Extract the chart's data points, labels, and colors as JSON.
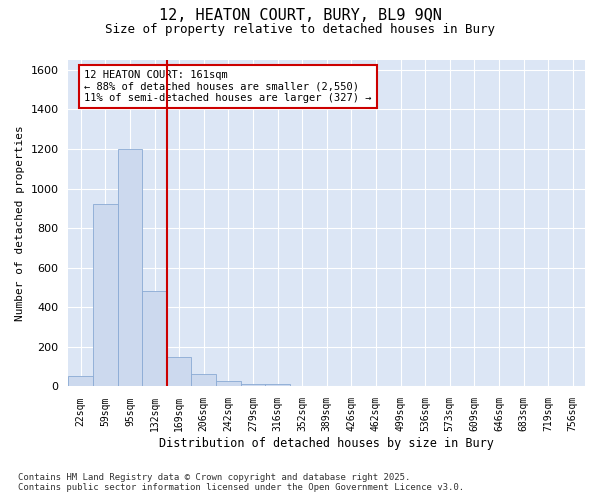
{
  "title1": "12, HEATON COURT, BURY, BL9 9QN",
  "title2": "Size of property relative to detached houses in Bury",
  "xlabel": "Distribution of detached houses by size in Bury",
  "ylabel": "Number of detached properties",
  "bar_color": "#ccd9ee",
  "bar_edge_color": "#8aaad4",
  "background_color": "#dce6f5",
  "grid_color": "#ffffff",
  "fig_bg": "#ffffff",
  "vline_color": "#cc0000",
  "vline_x": 3.5,
  "annotation_title": "12 HEATON COURT: 161sqm",
  "annotation_line1": "← 88% of detached houses are smaller (2,550)",
  "annotation_line2": "11% of semi-detached houses are larger (327) →",
  "categories": [
    "22sqm",
    "59sqm",
    "95sqm",
    "132sqm",
    "169sqm",
    "206sqm",
    "242sqm",
    "279sqm",
    "316sqm",
    "352sqm",
    "389sqm",
    "426sqm",
    "462sqm",
    "499sqm",
    "536sqm",
    "573sqm",
    "609sqm",
    "646sqm",
    "683sqm",
    "719sqm",
    "756sqm"
  ],
  "values": [
    55,
    920,
    1200,
    480,
    150,
    65,
    30,
    15,
    10,
    0,
    0,
    0,
    0,
    0,
    0,
    0,
    0,
    0,
    0,
    0,
    0
  ],
  "ylim": [
    0,
    1650
  ],
  "yticks": [
    0,
    200,
    400,
    600,
    800,
    1000,
    1200,
    1400,
    1600
  ],
  "footnote1": "Contains HM Land Registry data © Crown copyright and database right 2025.",
  "footnote2": "Contains public sector information licensed under the Open Government Licence v3.0."
}
